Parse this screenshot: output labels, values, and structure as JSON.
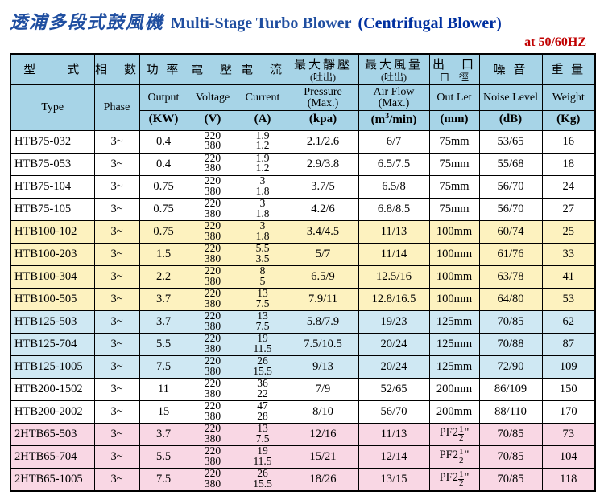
{
  "title": {
    "cn": "透浦多段式鼓風機",
    "en": "Multi-Stage Turbo Blower",
    "sub": "(Centrifugal Blower)",
    "freq": "at  50/60HZ"
  },
  "columns": [
    {
      "cn": "型　　式",
      "sub": "",
      "en": "Type",
      "unit": ""
    },
    {
      "cn": "相　數",
      "sub": "",
      "en": "Phase",
      "unit": ""
    },
    {
      "cn": "功 率",
      "sub": "",
      "en": "Output",
      "unit": "(KW)"
    },
    {
      "cn": "電　壓",
      "sub": "",
      "en": "Voltage",
      "unit": "(V)"
    },
    {
      "cn": "電　流",
      "sub": "",
      "en": "Current",
      "unit": "(A)"
    },
    {
      "cn": "最大靜壓",
      "sub": "(吐出)",
      "en": "Pressure (Max.)",
      "unit": "(kpa)"
    },
    {
      "cn": "最大風量",
      "sub": "(吐出)",
      "en": "Air Flow (Max.)",
      "unit": "(m³/min)"
    },
    {
      "cn": "出　口",
      "sub": "口　徑",
      "en": "Out Let",
      "unit": "(mm)"
    },
    {
      "cn": "噪 音",
      "sub": "",
      "en": "Noise Level",
      "unit": "(dB)"
    },
    {
      "cn": "重 量",
      "sub": "",
      "en": "Weight",
      "unit": "(Kg)"
    }
  ],
  "groups": {
    "0": "grp-white",
    "1": "grp-yellow",
    "2": "grp-blue",
    "3": "grp-white",
    "4": "grp-pink"
  },
  "rows": [
    {
      "g": 0,
      "type": "HTB75-032",
      "phase": "3~",
      "kw": "0.4",
      "v": [
        "220",
        "380"
      ],
      "a": [
        "1.9",
        "1.2"
      ],
      "kpa": "2.1/2.6",
      "flow": "6/7",
      "out": "75mm",
      "db": "53/65",
      "kg": "16"
    },
    {
      "g": 0,
      "type": "HTB75-053",
      "phase": "3~",
      "kw": "0.4",
      "v": [
        "220",
        "380"
      ],
      "a": [
        "1.9",
        "1.2"
      ],
      "kpa": "2.9/3.8",
      "flow": "6.5/7.5",
      "out": "75mm",
      "db": "55/68",
      "kg": "18"
    },
    {
      "g": 0,
      "type": "HTB75-104",
      "phase": "3~",
      "kw": "0.75",
      "v": [
        "220",
        "380"
      ],
      "a": [
        "3",
        "1.8"
      ],
      "kpa": "3.7/5",
      "flow": "6.5/8",
      "out": "75mm",
      "db": "56/70",
      "kg": "24"
    },
    {
      "g": 0,
      "type": "HTB75-105",
      "phase": "3~",
      "kw": "0.75",
      "v": [
        "220",
        "380"
      ],
      "a": [
        "3",
        "1.8"
      ],
      "kpa": "4.2/6",
      "flow": "6.8/8.5",
      "out": "75mm",
      "db": "56/70",
      "kg": "27"
    },
    {
      "g": 1,
      "type": "HTB100-102",
      "phase": "3~",
      "kw": "0.75",
      "v": [
        "220",
        "380"
      ],
      "a": [
        "3",
        "1.8"
      ],
      "kpa": "3.4/4.5",
      "flow": "11/13",
      "out": "100mm",
      "db": "60/74",
      "kg": "25"
    },
    {
      "g": 1,
      "type": "HTB100-203",
      "phase": "3~",
      "kw": "1.5",
      "v": [
        "220",
        "380"
      ],
      "a": [
        "5.5",
        "3.5"
      ],
      "kpa": "5/7",
      "flow": "11/14",
      "out": "100mm",
      "db": "61/76",
      "kg": "33"
    },
    {
      "g": 1,
      "type": "HTB100-304",
      "phase": "3~",
      "kw": "2.2",
      "v": [
        "220",
        "380"
      ],
      "a": [
        "8",
        "5"
      ],
      "kpa": "6.5/9",
      "flow": "12.5/16",
      "out": "100mm",
      "db": "63/78",
      "kg": "41"
    },
    {
      "g": 1,
      "type": "HTB100-505",
      "phase": "3~",
      "kw": "3.7",
      "v": [
        "220",
        "380"
      ],
      "a": [
        "13",
        "7.5"
      ],
      "kpa": "7.9/11",
      "flow": "12.8/16.5",
      "out": "100mm",
      "db": "64/80",
      "kg": "53"
    },
    {
      "g": 2,
      "type": "HTB125-503",
      "phase": "3~",
      "kw": "3.7",
      "v": [
        "220",
        "380"
      ],
      "a": [
        "13",
        "7.5"
      ],
      "kpa": "5.8/7.9",
      "flow": "19/23",
      "out": "125mm",
      "db": "70/85",
      "kg": "62"
    },
    {
      "g": 2,
      "type": "HTB125-704",
      "phase": "3~",
      "kw": "5.5",
      "v": [
        "220",
        "380"
      ],
      "a": [
        "19",
        "11.5"
      ],
      "kpa": "7.5/10.5",
      "flow": "20/24",
      "out": "125mm",
      "db": "70/88",
      "kg": "87"
    },
    {
      "g": 2,
      "type": "HTB125-1005",
      "phase": "3~",
      "kw": "7.5",
      "v": [
        "220",
        "380"
      ],
      "a": [
        "26",
        "15.5"
      ],
      "kpa": "9/13",
      "flow": "20/24",
      "out": "125mm",
      "db": "72/90",
      "kg": "109"
    },
    {
      "g": 3,
      "type": "HTB200-1502",
      "phase": "3~",
      "kw": "11",
      "v": [
        "220",
        "380"
      ],
      "a": [
        "36",
        "22"
      ],
      "kpa": "7/9",
      "flow": "52/65",
      "out": "200mm",
      "db": "86/109",
      "kg": "150"
    },
    {
      "g": 3,
      "type": "HTB200-2002",
      "phase": "3~",
      "kw": "15",
      "v": [
        "220",
        "380"
      ],
      "a": [
        "47",
        "28"
      ],
      "kpa": "8/10",
      "flow": "56/70",
      "out": "200mm",
      "db": "88/110",
      "kg": "170"
    },
    {
      "g": 4,
      "type": "2HTB65-503",
      "phase": "3~",
      "kw": "3.7",
      "v": [
        "220",
        "380"
      ],
      "a": [
        "13",
        "7.5"
      ],
      "kpa": "12/16",
      "flow": "11/13",
      "out": "PF2½\"",
      "db": "70/85",
      "kg": "73"
    },
    {
      "g": 4,
      "type": "2HTB65-704",
      "phase": "3~",
      "kw": "5.5",
      "v": [
        "220",
        "380"
      ],
      "a": [
        "19",
        "11.5"
      ],
      "kpa": "15/21",
      "flow": "12/14",
      "out": "PF2½\"",
      "db": "70/85",
      "kg": "104"
    },
    {
      "g": 4,
      "type": "2HTB65-1005",
      "phase": "3~",
      "kw": "7.5",
      "v": [
        "220",
        "380"
      ],
      "a": [
        "26",
        "15.5"
      ],
      "kpa": "18/26",
      "flow": "13/15",
      "out": "PF2½\"",
      "db": "70/85",
      "kg": "118"
    }
  ],
  "colors": {
    "title_blue": "#1f4ea0",
    "title_dark": "#0030a0",
    "freq_red": "#c00000",
    "hdr_bg": "#a7d4e7",
    "grp_white": "#ffffff",
    "grp_yellow": "#fdf2bf",
    "grp_blue": "#cfe8f3",
    "grp_pink": "#f9d7e4",
    "border": "#000000"
  }
}
